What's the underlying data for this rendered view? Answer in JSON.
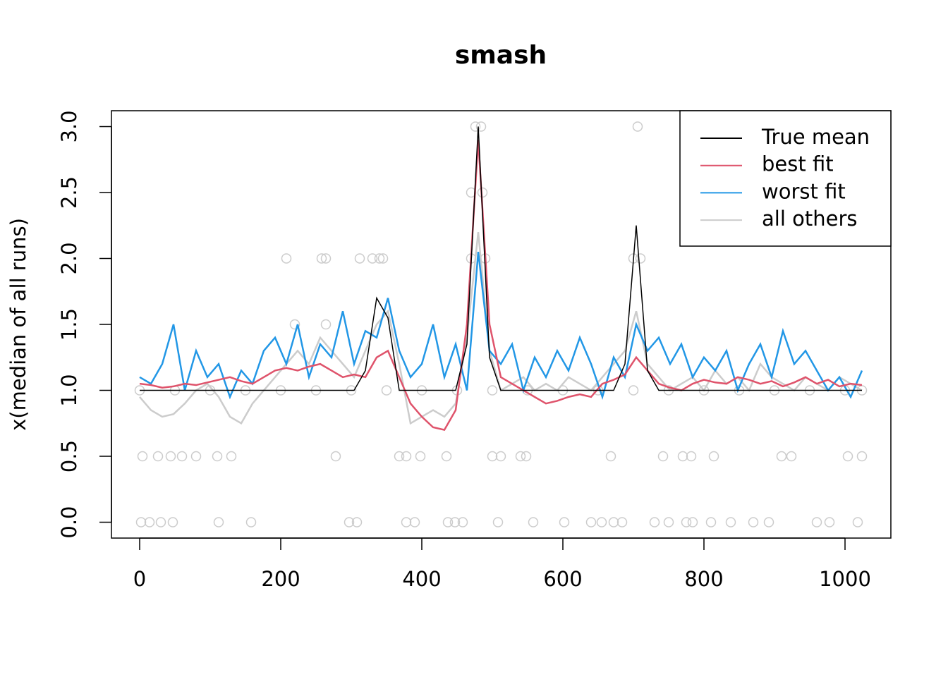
{
  "chart_data": {
    "type": "line",
    "title": "smash",
    "y_label": "x(median of all runs)",
    "x": [
      0,
      16,
      32,
      48,
      64,
      80,
      96,
      112,
      128,
      144,
      160,
      176,
      192,
      208,
      224,
      240,
      256,
      272,
      288,
      304,
      320,
      336,
      352,
      368,
      384,
      400,
      416,
      432,
      448,
      464,
      480,
      496,
      512,
      528,
      544,
      560,
      576,
      592,
      608,
      624,
      640,
      656,
      672,
      688,
      704,
      720,
      736,
      752,
      768,
      784,
      800,
      816,
      832,
      848,
      864,
      880,
      896,
      912,
      928,
      944,
      960,
      976,
      992,
      1008,
      1024
    ],
    "series": [
      {
        "name": "all others",
        "color": "#cccccc",
        "values": [
          0.95,
          0.85,
          0.8,
          0.82,
          0.9,
          1.0,
          1.05,
          0.95,
          0.8,
          0.75,
          0.9,
          1.0,
          1.1,
          1.2,
          1.3,
          1.2,
          1.4,
          1.3,
          1.2,
          1.1,
          1.3,
          1.5,
          1.6,
          1.2,
          0.75,
          0.8,
          0.85,
          0.8,
          0.9,
          1.4,
          2.2,
          1.3,
          1.0,
          1.05,
          1.1,
          1.0,
          1.05,
          1.0,
          1.1,
          1.05,
          1.0,
          1.1,
          1.2,
          1.3,
          1.6,
          1.2,
          1.1,
          1.0,
          1.05,
          1.1,
          1.0,
          1.15,
          1.05,
          1.1,
          1.0,
          1.2,
          1.1,
          1.05,
          1.0,
          1.1,
          1.05,
          1.0,
          1.1,
          1.05,
          1.0
        ]
      },
      {
        "name": "worst fit",
        "color": "#2297e6",
        "values": [
          1.1,
          1.05,
          1.2,
          1.5,
          1.0,
          1.3,
          1.1,
          1.2,
          0.95,
          1.15,
          1.05,
          1.3,
          1.4,
          1.2,
          1.5,
          1.1,
          1.35,
          1.25,
          1.6,
          1.2,
          1.45,
          1.4,
          1.7,
          1.3,
          1.1,
          1.2,
          1.5,
          1.1,
          1.35,
          1.0,
          2.05,
          1.3,
          1.2,
          1.35,
          1.0,
          1.25,
          1.1,
          1.3,
          1.15,
          1.4,
          1.2,
          0.95,
          1.25,
          1.1,
          1.5,
          1.3,
          1.4,
          1.2,
          1.35,
          1.1,
          1.25,
          1.15,
          1.3,
          1.0,
          1.2,
          1.35,
          1.1,
          1.45,
          1.2,
          1.3,
          1.15,
          1.0,
          1.1,
          0.95,
          1.15
        ]
      },
      {
        "name": "best fit",
        "color": "#df536b",
        "values": [
          1.05,
          1.04,
          1.02,
          1.03,
          1.05,
          1.04,
          1.06,
          1.08,
          1.1,
          1.07,
          1.05,
          1.1,
          1.15,
          1.17,
          1.15,
          1.18,
          1.2,
          1.15,
          1.1,
          1.12,
          1.1,
          1.25,
          1.3,
          1.1,
          0.9,
          0.8,
          0.72,
          0.7,
          0.85,
          1.5,
          2.9,
          1.5,
          1.1,
          1.05,
          1.0,
          0.95,
          0.9,
          0.92,
          0.95,
          0.97,
          0.95,
          1.05,
          1.08,
          1.12,
          1.25,
          1.15,
          1.05,
          1.02,
          1.0,
          1.05,
          1.08,
          1.06,
          1.05,
          1.1,
          1.08,
          1.05,
          1.07,
          1.03,
          1.06,
          1.1,
          1.05,
          1.08,
          1.03,
          1.05,
          1.04
        ]
      },
      {
        "name": "True mean",
        "color": "#000000",
        "values": [
          1,
          1,
          1,
          1,
          1,
          1,
          1,
          1,
          1,
          1,
          1,
          1,
          1,
          1,
          1,
          1,
          1,
          1,
          1,
          1,
          1.15,
          1.7,
          1.55,
          1,
          1,
          1,
          1,
          1,
          1,
          1.35,
          3,
          1.25,
          1,
          1,
          1,
          1,
          1,
          1,
          1,
          1,
          1,
          1,
          1,
          1.2,
          2.25,
          1.15,
          1,
          1,
          1,
          1,
          1,
          1,
          1,
          1,
          1,
          1,
          1,
          1,
          1,
          1,
          1,
          1,
          1,
          1,
          1
        ]
      }
    ],
    "legend_order": [
      "True mean",
      "best fit",
      "worst fit",
      "all others"
    ],
    "points": {
      "color": "#cccccc",
      "x": [
        2,
        14,
        30,
        47,
        112,
        158,
        297,
        308,
        378,
        390,
        437,
        447,
        458,
        508,
        558,
        602,
        640,
        655,
        672,
        684,
        730,
        750,
        775,
        784,
        810,
        838,
        870,
        892,
        960,
        978,
        1018,
        4,
        26,
        44,
        60,
        80,
        110,
        130,
        278,
        368,
        378,
        398,
        435,
        500,
        512,
        540,
        548,
        668,
        742,
        770,
        782,
        814,
        910,
        924,
        1004,
        1024,
        0,
        50,
        100,
        150,
        200,
        250,
        300,
        350,
        400,
        450,
        500,
        550,
        600,
        650,
        700,
        750,
        800,
        850,
        900,
        950,
        1000,
        1024,
        220,
        264,
        208,
        258,
        264,
        312,
        330,
        340,
        345,
        470,
        490,
        700,
        710,
        470,
        486,
        476,
        484,
        706
      ],
      "y": [
        0,
        0,
        0,
        0,
        0,
        0,
        0,
        0,
        0,
        0,
        0,
        0,
        0,
        0,
        0,
        0,
        0,
        0,
        0,
        0,
        0,
        0,
        0,
        0,
        0,
        0,
        0,
        0,
        0,
        0,
        0,
        0.5,
        0.5,
        0.5,
        0.5,
        0.5,
        0.5,
        0.5,
        0.5,
        0.5,
        0.5,
        0.5,
        0.5,
        0.5,
        0.5,
        0.5,
        0.5,
        0.5,
        0.5,
        0.5,
        0.5,
        0.5,
        0.5,
        0.5,
        0.5,
        0.5,
        1,
        1,
        1,
        1,
        1,
        1,
        1,
        1,
        1,
        1,
        1,
        1,
        1,
        1,
        1,
        1,
        1,
        1,
        1,
        1,
        1,
        1,
        1.5,
        1.5,
        2,
        2,
        2,
        2,
        2,
        2,
        2,
        2,
        2,
        2,
        2,
        2.5,
        2.5,
        3,
        3,
        3
      ]
    },
    "xlim": [
      -40,
      1065
    ],
    "ylim": [
      -0.12,
      3.12
    ],
    "xticks": [
      0,
      200,
      400,
      600,
      800,
      1000
    ],
    "yticks": [
      {
        "value": 0,
        "label": "0.0"
      },
      {
        "value": 0.5,
        "label": "0.5"
      },
      {
        "value": 1,
        "label": "1.0"
      },
      {
        "value": 1.5,
        "label": "1.5"
      },
      {
        "value": 2,
        "label": "2.0"
      },
      {
        "value": 2.5,
        "label": "2.5"
      },
      {
        "value": 3,
        "label": "3.0"
      }
    ],
    "legend": "topright"
  }
}
